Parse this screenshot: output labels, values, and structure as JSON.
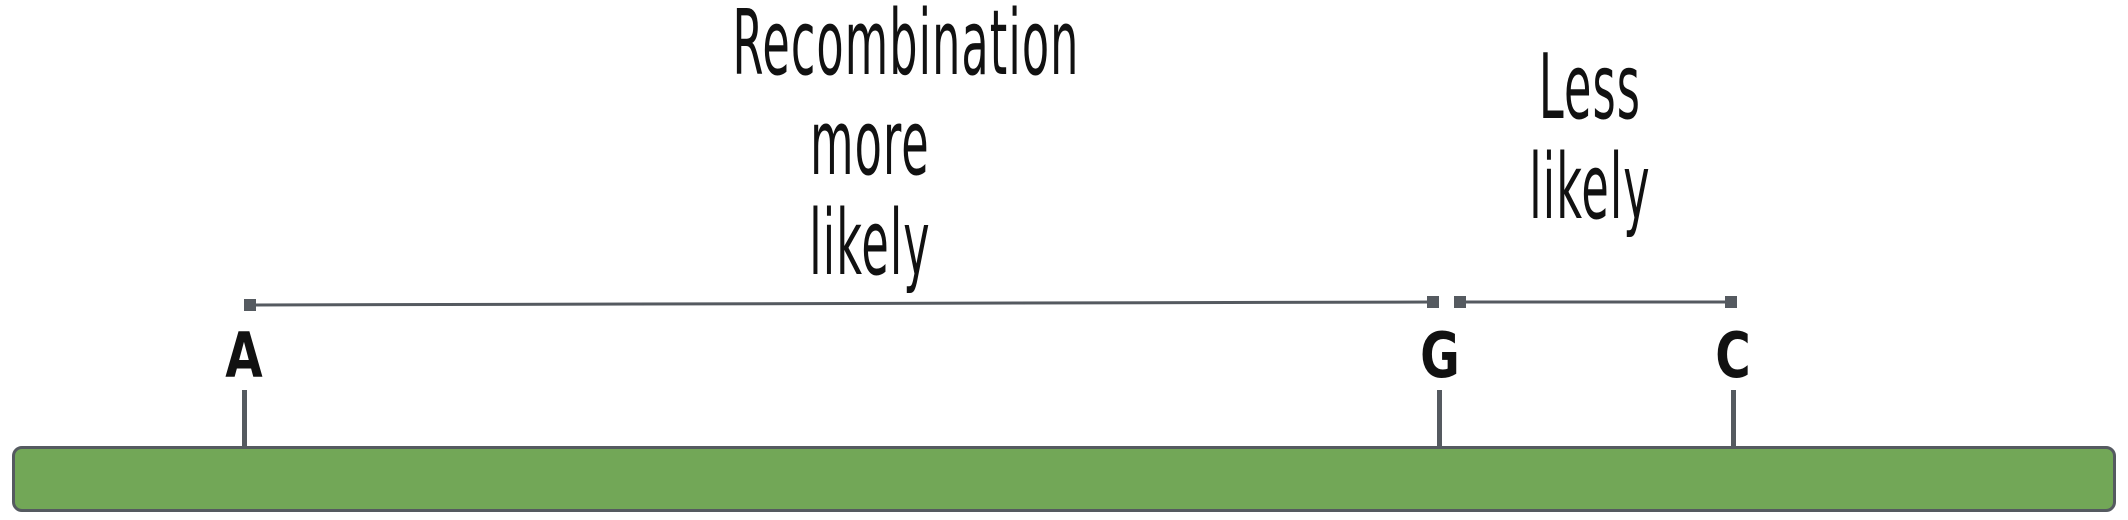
{
  "labels": {
    "recombination": {
      "line1": "Recombination",
      "line2": "more",
      "line3": "likely"
    },
    "less": {
      "line1": "Less",
      "line2": "likely"
    }
  },
  "loci": {
    "a": "A",
    "g": "G",
    "c": "C"
  },
  "colors": {
    "chromosome_fill": "#72a757",
    "chromosome_border": "#555a60",
    "line": "#555a60",
    "text": "#111111"
  }
}
